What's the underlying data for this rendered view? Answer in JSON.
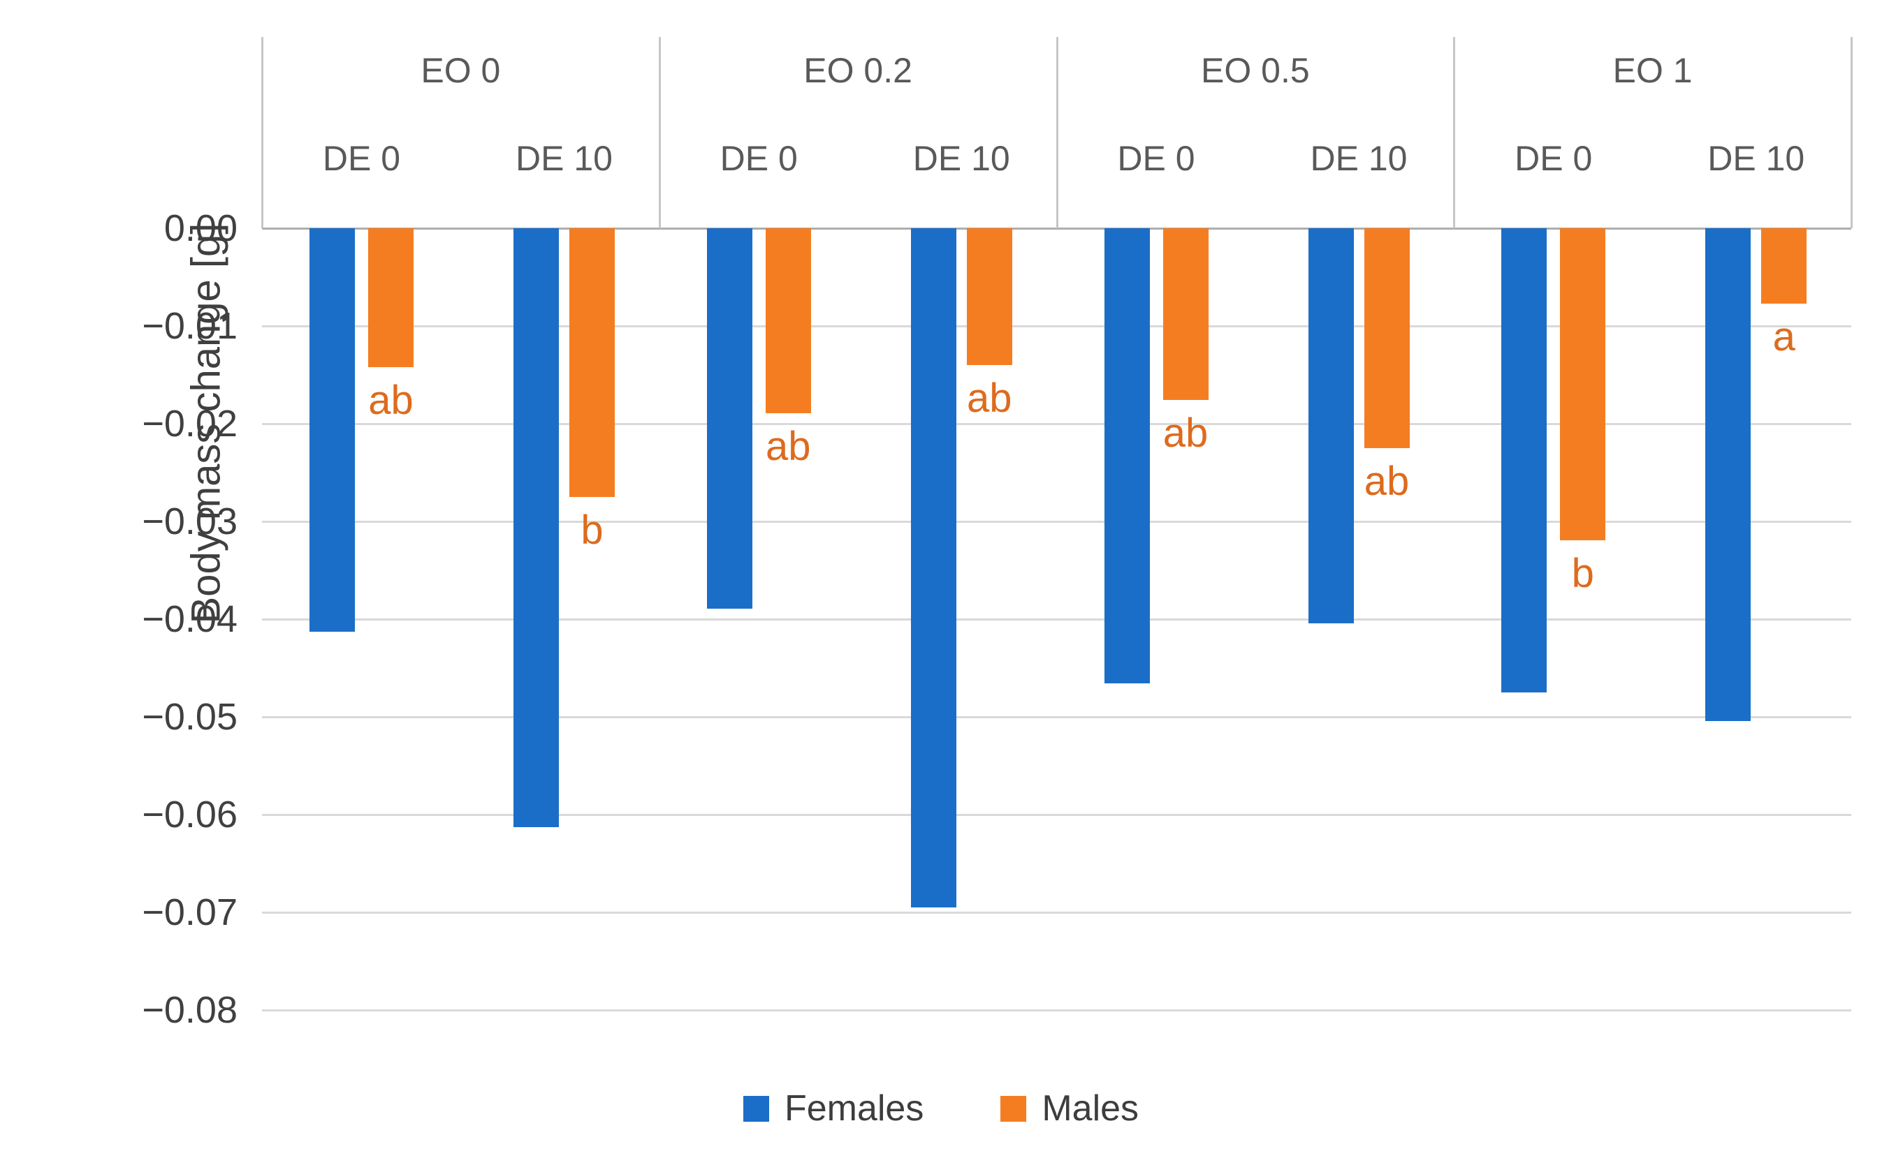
{
  "chart_data": {
    "type": "bar",
    "title": "",
    "ylabel": "Body mass change [g]",
    "ylim": [
      -0.08,
      0
    ],
    "ytick_step": 0.01,
    "ytick_labels": [
      "0.00",
      "−0.01",
      "−0.02",
      "−0.03",
      "−0.04",
      "−0.05",
      "−0.06",
      "−0.07",
      "−0.08"
    ],
    "grid": true,
    "legend_position": "bottom-center",
    "series": [
      {
        "name": "Females",
        "color": "#1b6ec7"
      },
      {
        "name": "Males",
        "color": "#f57d21"
      }
    ],
    "sig_color": "#dd6b1d",
    "groups": [
      {
        "label": "EO 0",
        "subgroups": [
          {
            "label": "DE 0",
            "females": -0.0413,
            "males": -0.0142,
            "sig": "ab"
          },
          {
            "label": "DE 10",
            "females": -0.0613,
            "males": -0.0275,
            "sig": "b"
          }
        ]
      },
      {
        "label": "EO 0.2",
        "subgroups": [
          {
            "label": "DE 0",
            "females": -0.0389,
            "males": -0.0189,
            "sig": "ab"
          },
          {
            "label": "DE 10",
            "females": -0.0695,
            "males": -0.014,
            "sig": "ab"
          }
        ]
      },
      {
        "label": "EO 0.5",
        "subgroups": [
          {
            "label": "DE 0",
            "females": -0.0466,
            "males": -0.0176,
            "sig": "ab"
          },
          {
            "label": "DE 10",
            "females": -0.0404,
            "males": -0.0225,
            "sig": "ab"
          }
        ]
      },
      {
        "label": "EO 1",
        "subgroups": [
          {
            "label": "DE 0",
            "females": -0.0475,
            "males": -0.0319,
            "sig": "b"
          },
          {
            "label": "DE 10",
            "females": -0.0504,
            "males": -0.0077,
            "sig": "a"
          }
        ]
      }
    ]
  }
}
